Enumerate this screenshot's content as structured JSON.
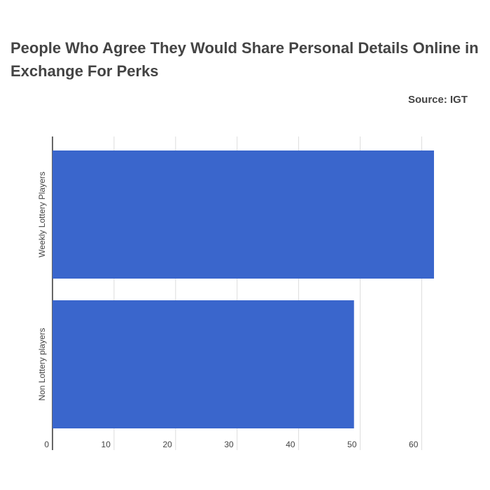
{
  "chart_data": {
    "type": "bar",
    "orientation": "horizontal",
    "title": "People Who Agree They Would Share Personal Details Online in Exchange For Perks",
    "source": "Source: IGT",
    "categories": [
      "Weekly Lottery Players",
      "Non Lottery players"
    ],
    "values": [
      62,
      49
    ],
    "color": "#3a66cc",
    "xlim": [
      0,
      62
    ],
    "xticks": [
      0,
      10,
      20,
      30,
      40,
      50,
      60
    ],
    "grid": true
  }
}
